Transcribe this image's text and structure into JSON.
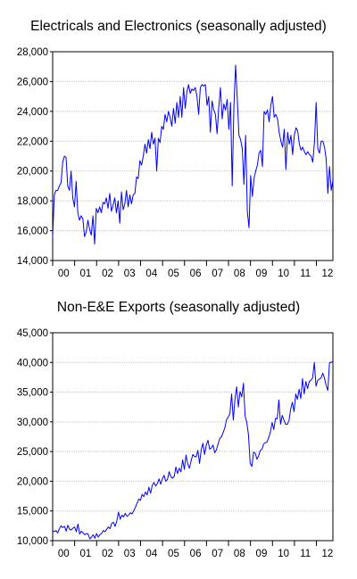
{
  "chart_data": [
    {
      "type": "line",
      "title": "Electricals and Electronics (seasonally adjusted)",
      "xlabel": "",
      "ylabel": "",
      "ylim": [
        14000,
        28000
      ],
      "yticks": [
        "14,000",
        "16,000",
        "18,000",
        "20,000",
        "22,000",
        "24,000",
        "26,000",
        "28,000"
      ],
      "xticks": [
        "00",
        "01",
        "02",
        "03",
        "04",
        "05",
        "06",
        "07",
        "08",
        "09",
        "10",
        "11",
        "12"
      ],
      "grid": true,
      "line_color": "#0000ff",
      "series": [
        {
          "values": [
            15600,
            18400,
            18700,
            18700,
            19000,
            19200,
            20600,
            21000,
            20900,
            19000,
            18700,
            20000,
            18200,
            17600,
            19300,
            17200,
            16700,
            17000,
            16800,
            15600,
            15900,
            16700,
            16100,
            15700,
            17000,
            15100,
            17500,
            17200,
            17600,
            17200,
            17900,
            17800,
            18200,
            17500,
            18500,
            17300,
            17700,
            18200,
            17200,
            18000,
            16500,
            18600,
            17400,
            17800,
            18700,
            17600,
            18400,
            17800,
            18400,
            18500,
            19600,
            19500,
            20700,
            20400,
            21000,
            21800,
            21200,
            22100,
            21500,
            22600,
            21800,
            22200,
            20000,
            22200,
            21900,
            23000,
            22800,
            23800,
            23300,
            24000,
            23600,
            23000,
            24200,
            23200,
            24600,
            23600,
            25000,
            23600,
            25600,
            24200,
            25300,
            25800,
            25200,
            25500,
            25400,
            25600,
            25000,
            23800,
            25600,
            25800,
            25700,
            25800,
            24400,
            25000,
            22600,
            24700,
            24100,
            23800,
            22500,
            24300,
            25600,
            23500,
            24500,
            24100,
            24800,
            22800,
            24600,
            19000,
            24300,
            27100,
            24900,
            22400,
            22100,
            21500,
            19100,
            22400,
            17300,
            16200,
            19700,
            18300,
            19500,
            20000,
            20400,
            21200,
            21400,
            20300,
            24000,
            23800,
            24100,
            23300,
            24400,
            25000,
            23600,
            23800,
            23500,
            22600,
            22000,
            21600,
            22800,
            20100,
            22600,
            21800,
            22400,
            21100,
            22400,
            22900,
            22700,
            21800,
            21400,
            21600,
            21300,
            21100,
            21300,
            21100,
            21000,
            20600,
            21900,
            24600,
            21500,
            21200,
            22000,
            22000,
            21600,
            20800,
            18500,
            20300,
            18700,
            19400
          ]
        }
      ]
    },
    {
      "type": "line",
      "title": "Non-E&E Exports (seasonally adjusted)",
      "xlabel": "",
      "ylabel": "",
      "ylim": [
        10000,
        45000
      ],
      "yticks": [
        "10,000",
        "15,000",
        "20,000",
        "25,000",
        "30,000",
        "35,000",
        "40,000",
        "45,000"
      ],
      "xticks": [
        "00",
        "01",
        "02",
        "03",
        "04",
        "05",
        "06",
        "07",
        "08",
        "09",
        "10",
        "11",
        "12"
      ],
      "grid": true,
      "line_color": "#0000ff",
      "series": [
        {
          "values": [
            11700,
            11500,
            11700,
            11300,
            12000,
            12500,
            12200,
            12400,
            11600,
            12600,
            11900,
            11800,
            12100,
            12300,
            11500,
            12800,
            11100,
            11600,
            11300,
            11000,
            11200,
            11100,
            10300,
            10600,
            11000,
            10400,
            11200,
            10600,
            11000,
            11200,
            11700,
            11500,
            11900,
            12300,
            12000,
            12900,
            13100,
            12400,
            13300,
            14800,
            13600,
            14300,
            14000,
            14600,
            14100,
            14300,
            14700,
            14500,
            15000,
            15600,
            16300,
            17000,
            16800,
            17800,
            17400,
            18200,
            17700,
            19000,
            18000,
            19300,
            19800,
            19200,
            19600,
            20400,
            19500,
            20400,
            21000,
            20000,
            20300,
            21600,
            20800,
            20500,
            20800,
            22400,
            21300,
            22200,
            21600,
            23600,
            22000,
            24400,
            22900,
            22200,
            23400,
            24500,
            24200,
            24100,
            25200,
            23000,
            25300,
            26400,
            24500,
            26100,
            26900,
            25400,
            25600,
            26100,
            24800,
            25300,
            26300,
            27200,
            27500,
            28200,
            29000,
            30400,
            30800,
            31400,
            34700,
            30300,
            33800,
            35900,
            32500,
            35100,
            34200,
            36500,
            31000,
            29900,
            27800,
            23000,
            22500,
            24900,
            24700,
            23700,
            24300,
            25200,
            25400,
            26300,
            26500,
            26600,
            27400,
            28300,
            29900,
            28700,
            30600,
            30500,
            33700,
            29600,
            31100,
            30300,
            29600,
            29600,
            30200,
            32200,
            33300,
            31700,
            34700,
            33800,
            35500,
            33900,
            37300,
            34700,
            36800,
            35600,
            36800,
            37000,
            37400,
            40000,
            36000,
            37000,
            37200,
            37400,
            38200,
            37400,
            36100,
            35300,
            40000,
            40000,
            40200
          ]
        }
      ]
    }
  ]
}
